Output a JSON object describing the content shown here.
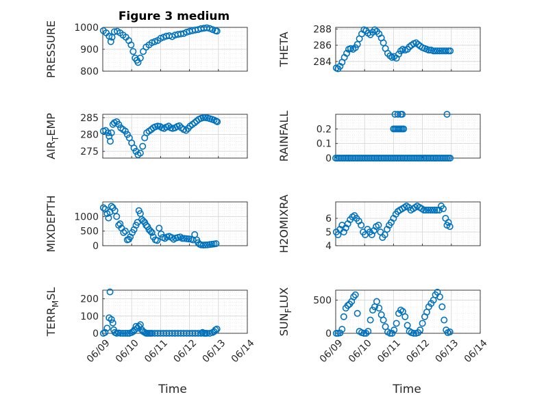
{
  "figure": {
    "title": "Figure 3 medium",
    "xlabel": "Time"
  },
  "colors": {
    "marker": "#0072BD",
    "axis": "#262626",
    "grid": "#d9d9d9"
  },
  "chart_data": [
    {
      "type": "scatter",
      "ylabel": "PRESSURE",
      "ylim": [
        800,
        1000
      ],
      "yticks": [
        800,
        900,
        1000
      ],
      "ytick_labels": [
        "800",
        "900",
        "1000"
      ],
      "xlim": [
        0,
        5
      ],
      "xticks": [
        0,
        1,
        2,
        3,
        4,
        5
      ],
      "xtick_labels": [
        "06/09",
        "06/10",
        "06/11",
        "06/12",
        "06/13",
        "06/14"
      ],
      "x": [
        0.02,
        0.12,
        0.22,
        0.28,
        0.32,
        0.4,
        0.5,
        0.6,
        0.7,
        0.8,
        0.9,
        0.98,
        1.05,
        1.12,
        1.18,
        1.22,
        1.3,
        1.4,
        1.5,
        1.6,
        1.7,
        1.8,
        1.9,
        2.0,
        2.1,
        2.2,
        2.3,
        2.4,
        2.5,
        2.6,
        2.7,
        2.8,
        2.9,
        3.0,
        3.1,
        3.2,
        3.3,
        3.4,
        3.5,
        3.6,
        3.7,
        3.8,
        3.9,
        3.95
      ],
      "y": [
        985,
        975,
        960,
        935,
        955,
        980,
        982,
        975,
        965,
        955,
        940,
        920,
        890,
        860,
        850,
        840,
        860,
        890,
        910,
        920,
        930,
        935,
        940,
        950,
        955,
        960,
        962,
        958,
        965,
        968,
        970,
        972,
        978,
        982,
        985,
        988,
        990,
        994,
        996,
        998,
        995,
        990,
        985,
        983
      ]
    },
    {
      "type": "scatter",
      "ylabel": "THETA",
      "ylim": [
        282.8,
        288.2
      ],
      "yticks": [
        284,
        286,
        288
      ],
      "ytick_labels": [
        "284",
        "286",
        "288"
      ],
      "xlim": [
        0,
        5
      ],
      "xticks": [
        0,
        1,
        2,
        3,
        4,
        5
      ],
      "xtick_labels": [
        "06/09",
        "06/10",
        "06/11",
        "06/12",
        "06/13",
        "06/14"
      ],
      "x": [
        0.02,
        0.08,
        0.15,
        0.22,
        0.3,
        0.38,
        0.45,
        0.52,
        0.6,
        0.68,
        0.75,
        0.82,
        0.9,
        0.98,
        1.05,
        1.12,
        1.2,
        1.28,
        1.35,
        1.42,
        1.5,
        1.58,
        1.65,
        1.72,
        1.8,
        1.88,
        1.95,
        2.02,
        2.1,
        2.18,
        2.25,
        2.32,
        2.4,
        2.48,
        2.55,
        2.62,
        2.7,
        2.78,
        2.85,
        2.92,
        3.0,
        3.08,
        3.15,
        3.22,
        3.3,
        3.38,
        3.45,
        3.52,
        3.6,
        3.68,
        3.75,
        3.82,
        3.9,
        3.96
      ],
      "y": [
        283.2,
        283.1,
        283.4,
        283.9,
        284.5,
        285.0,
        285.5,
        285.6,
        285.5,
        285.7,
        286.1,
        286.8,
        287.4,
        287.9,
        287.8,
        287.5,
        287.3,
        287.6,
        287.9,
        287.7,
        287.4,
        286.9,
        286.3,
        285.6,
        285.0,
        284.7,
        284.5,
        284.6,
        284.4,
        284.9,
        285.3,
        285.5,
        285.4,
        285.5,
        285.8,
        286.0,
        286.2,
        286.3,
        286.1,
        285.9,
        285.7,
        285.6,
        285.5,
        285.4,
        285.4,
        285.3,
        285.3,
        285.3,
        285.3,
        285.3,
        285.3,
        285.3,
        285.3,
        285.3
      ]
    },
    {
      "type": "scatter",
      "ylabel": "AIR_TEMP",
      "ylim": [
        273,
        286
      ],
      "yticks": [
        275,
        280,
        285
      ],
      "ytick_labels": [
        "275",
        "280",
        "285"
      ],
      "xlim": [
        0,
        5
      ],
      "xticks": [
        0,
        1,
        2,
        3,
        4,
        5
      ],
      "xtick_labels": [
        "06/09",
        "06/10",
        "06/11",
        "06/12",
        "06/13",
        "06/14"
      ],
      "x": [
        0.02,
        0.1,
        0.18,
        0.22,
        0.26,
        0.3,
        0.35,
        0.4,
        0.48,
        0.55,
        0.62,
        0.7,
        0.78,
        0.85,
        0.92,
        1.0,
        1.08,
        1.15,
        1.22,
        1.3,
        1.38,
        1.45,
        1.52,
        1.6,
        1.68,
        1.75,
        1.82,
        1.9,
        1.98,
        2.05,
        2.12,
        2.2,
        2.28,
        2.35,
        2.42,
        2.5,
        2.58,
        2.65,
        2.72,
        2.8,
        2.88,
        2.95,
        3.02,
        3.1,
        3.18,
        3.25,
        3.32,
        3.4,
        3.48,
        3.55,
        3.62,
        3.7,
        3.78,
        3.85,
        3.92,
        3.96
      ],
      "y": [
        281.0,
        281.2,
        280.5,
        279.5,
        278.0,
        280.5,
        283.0,
        283.5,
        283.8,
        283.0,
        282.0,
        281.5,
        281.0,
        280.0,
        279.0,
        277.5,
        276.0,
        275.0,
        274.0,
        274.5,
        276.5,
        279.0,
        280.5,
        281.0,
        281.5,
        282.0,
        282.3,
        282.5,
        282.4,
        282.0,
        281.8,
        282.2,
        282.5,
        282.0,
        281.8,
        282.0,
        282.4,
        282.6,
        282.0,
        281.5,
        281.2,
        281.8,
        282.5,
        283.0,
        283.5,
        284.0,
        284.5,
        284.8,
        285.0,
        285.0,
        284.9,
        284.7,
        284.5,
        284.3,
        284.0,
        283.8
      ]
    },
    {
      "type": "scatter",
      "ylabel": "RAINFALL",
      "ylim": [
        0,
        0.3
      ],
      "yticks": [
        0,
        0.1,
        0.2
      ],
      "ytick_labels": [
        "0",
        "0.1",
        "0.2"
      ],
      "xlim": [
        0,
        5
      ],
      "xticks": [
        0,
        1,
        2,
        3,
        4,
        5
      ],
      "xtick_labels": [
        "06/09",
        "06/10",
        "06/11",
        "06/12",
        "06/13",
        "06/14"
      ],
      "x": [
        0.0,
        0.06,
        0.12,
        0.18,
        0.24,
        0.3,
        0.36,
        0.42,
        0.48,
        0.54,
        0.6,
        0.66,
        0.72,
        0.78,
        0.84,
        0.9,
        0.96,
        1.02,
        1.08,
        1.14,
        1.2,
        1.26,
        1.32,
        1.38,
        1.44,
        1.5,
        1.56,
        1.62,
        1.68,
        1.74,
        1.8,
        1.86,
        1.92,
        1.98,
        2.04,
        2.1,
        2.16,
        2.22,
        2.28,
        2.34,
        2.4,
        2.46,
        2.52,
        2.58,
        2.64,
        2.7,
        2.76,
        2.82,
        2.88,
        2.94,
        3.0,
        3.06,
        3.12,
        3.18,
        3.24,
        3.3,
        3.36,
        3.42,
        3.48,
        3.54,
        3.6,
        3.66,
        3.72,
        3.78,
        3.84,
        3.9,
        3.96,
        2.0,
        2.05,
        2.1,
        2.15,
        2.2,
        2.25,
        2.3,
        2.35,
        2.05,
        2.15,
        2.25,
        2.3,
        3.85
      ],
      "y": [
        0,
        0,
        0,
        0,
        0,
        0,
        0,
        0,
        0,
        0,
        0,
        0,
        0,
        0,
        0,
        0,
        0,
        0,
        0,
        0,
        0,
        0,
        0,
        0,
        0,
        0,
        0,
        0,
        0,
        0,
        0,
        0,
        0,
        0,
        0,
        0,
        0,
        0,
        0,
        0,
        0,
        0,
        0,
        0,
        0,
        0,
        0,
        0,
        0,
        0,
        0,
        0,
        0,
        0,
        0,
        0,
        0,
        0,
        0,
        0,
        0,
        0,
        0,
        0,
        0,
        0,
        0,
        0.2,
        0.2,
        0.2,
        0.2,
        0.2,
        0.2,
        0.2,
        0.2,
        0.3,
        0.3,
        0.3,
        0.3,
        0.3
      ]
    },
    {
      "type": "scatter",
      "ylabel": "MIXDEPTH",
      "ylim": [
        0,
        1500
      ],
      "yticks": [
        0,
        500,
        1000
      ],
      "ytick_labels": [
        "0",
        "500",
        "1000"
      ],
      "xlim": [
        0,
        5
      ],
      "xticks": [
        0,
        1,
        2,
        3,
        4,
        5
      ],
      "xtick_labels": [
        "06/09",
        "06/10",
        "06/11",
        "06/12",
        "06/13",
        "06/14"
      ],
      "x": [
        0.02,
        0.08,
        0.15,
        0.2,
        0.25,
        0.3,
        0.35,
        0.42,
        0.48,
        0.55,
        0.6,
        0.65,
        0.72,
        0.78,
        0.85,
        0.9,
        0.95,
        1.02,
        1.08,
        1.15,
        1.2,
        1.25,
        1.3,
        1.35,
        1.4,
        1.45,
        1.5,
        1.55,
        1.6,
        1.65,
        1.7,
        1.75,
        1.82,
        1.88,
        1.95,
        2.02,
        2.08,
        2.15,
        2.22,
        2.3,
        2.38,
        2.45,
        2.52,
        2.6,
        2.68,
        2.75,
        2.82,
        2.9,
        2.98,
        3.05,
        3.12,
        3.18,
        3.25,
        3.3,
        3.35,
        3.4,
        3.48,
        3.55,
        3.62,
        3.7,
        3.78,
        3.85,
        3.92
      ],
      "y": [
        1300,
        1250,
        1100,
        950,
        1150,
        1350,
        1300,
        1200,
        1000,
        700,
        750,
        600,
        450,
        500,
        200,
        220,
        300,
        450,
        550,
        700,
        800,
        1200,
        1100,
        900,
        850,
        800,
        700,
        650,
        550,
        500,
        450,
        300,
        200,
        180,
        600,
        400,
        280,
        250,
        300,
        320,
        280,
        220,
        260,
        280,
        300,
        250,
        250,
        240,
        230,
        220,
        200,
        380,
        200,
        100,
        50,
        30,
        20,
        25,
        30,
        40,
        50,
        60,
        70
      ]
    },
    {
      "type": "scatter",
      "ylabel": "H2OMIXRA",
      "ylim": [
        4,
        7.2
      ],
      "yticks": [
        4,
        5,
        6
      ],
      "ytick_labels": [
        "4",
        "5",
        "6"
      ],
      "xlim": [
        0,
        5
      ],
      "xticks": [
        0,
        1,
        2,
        3,
        4,
        5
      ],
      "xtick_labels": [
        "06/09",
        "06/10",
        "06/11",
        "06/12",
        "06/13",
        "06/14"
      ],
      "x": [
        0.02,
        0.08,
        0.15,
        0.22,
        0.28,
        0.35,
        0.42,
        0.5,
        0.58,
        0.65,
        0.72,
        0.8,
        0.88,
        0.95,
        1.02,
        1.1,
        1.18,
        1.25,
        1.32,
        1.4,
        1.48,
        1.55,
        1.62,
        1.7,
        1.78,
        1.85,
        1.92,
        2.0,
        2.08,
        2.15,
        2.22,
        2.3,
        2.38,
        2.45,
        2.52,
        2.6,
        2.68,
        2.75,
        2.82,
        2.9,
        2.98,
        3.05,
        3.12,
        3.2,
        3.28,
        3.35,
        3.42,
        3.5,
        3.58,
        3.65,
        3.72,
        3.8,
        3.85,
        3.9,
        3.95
      ],
      "y": [
        5.0,
        4.8,
        5.2,
        5.5,
        5.0,
        5.3,
        5.6,
        5.9,
        6.1,
        6.2,
        6.0,
        5.8,
        5.5,
        5.0,
        4.8,
        5.2,
        5.0,
        4.8,
        5.1,
        5.4,
        5.5,
        5.0,
        4.6,
        4.8,
        5.2,
        5.5,
        5.7,
        6.0,
        6.3,
        6.5,
        6.6,
        6.7,
        6.8,
        6.9,
        6.8,
        6.6,
        6.7,
        6.8,
        6.9,
        6.8,
        6.7,
        6.6,
        6.6,
        6.6,
        6.6,
        6.6,
        6.6,
        6.6,
        6.6,
        6.9,
        6.7,
        6.0,
        5.5,
        5.7,
        5.4
      ]
    },
    {
      "type": "scatter",
      "ylabel": "TERR_MSL",
      "ylim": [
        0,
        250
      ],
      "yticks": [
        0,
        100,
        200
      ],
      "ytick_labels": [
        "0",
        "100",
        "200"
      ],
      "xlim": [
        0,
        5
      ],
      "xticks": [
        0,
        1,
        2,
        3,
        4,
        5
      ],
      "xtick_labels": [
        "06/09",
        "06/10",
        "06/11",
        "06/12",
        "06/13",
        "06/14"
      ],
      "x": [
        0.02,
        0.08,
        0.15,
        0.22,
        0.25,
        0.3,
        0.35,
        0.38,
        0.42,
        0.48,
        0.55,
        0.62,
        0.7,
        0.78,
        0.85,
        0.92,
        1.0,
        1.05,
        1.1,
        1.15,
        1.2,
        1.25,
        1.3,
        1.35,
        1.4,
        1.45,
        1.5,
        1.55,
        1.6,
        1.65,
        1.7,
        1.8,
        1.9,
        2.0,
        2.1,
        2.2,
        2.3,
        2.4,
        2.5,
        2.6,
        2.7,
        2.8,
        2.9,
        3.0,
        3.1,
        3.2,
        3.3,
        3.4,
        3.45,
        3.5,
        3.55,
        3.6,
        3.7,
        3.8,
        3.85,
        3.9,
        3.95
      ],
      "y": [
        0,
        5,
        30,
        90,
        240,
        80,
        60,
        20,
        5,
        0,
        2,
        0,
        0,
        0,
        0,
        0,
        5,
        10,
        20,
        40,
        30,
        40,
        50,
        20,
        10,
        5,
        0,
        0,
        0,
        0,
        0,
        0,
        0,
        0,
        0,
        0,
        0,
        0,
        0,
        0,
        0,
        0,
        0,
        0,
        0,
        0,
        0,
        0,
        5,
        0,
        0,
        0,
        0,
        5,
        10,
        20,
        25
      ]
    },
    {
      "type": "scatter",
      "ylabel": "SUN_FLUX",
      "ylim": [
        0,
        650
      ],
      "yticks": [
        0,
        500
      ],
      "ytick_labels": [
        "0",
        "500"
      ],
      "xlim": [
        0,
        5
      ],
      "xticks": [
        0,
        1,
        2,
        3,
        4,
        5
      ],
      "xtick_labels": [
        "06/09",
        "06/10",
        "06/11",
        "06/12",
        "06/13",
        "06/14"
      ],
      "x": [
        0.02,
        0.08,
        0.15,
        0.22,
        0.28,
        0.35,
        0.42,
        0.48,
        0.55,
        0.62,
        0.68,
        0.75,
        0.82,
        0.9,
        0.98,
        1.05,
        1.12,
        1.2,
        1.28,
        1.35,
        1.42,
        1.5,
        1.58,
        1.65,
        1.72,
        1.8,
        1.88,
        1.95,
        2.02,
        2.1,
        2.18,
        2.25,
        2.32,
        2.4,
        2.48,
        2.55,
        2.62,
        2.7,
        2.78,
        2.85,
        2.92,
        3.0,
        3.08,
        3.15,
        3.22,
        3.3,
        3.38,
        3.45,
        3.52,
        3.6,
        3.68,
        3.75,
        3.82,
        3.88,
        3.95
      ],
      "y": [
        0,
        0,
        5,
        60,
        250,
        380,
        420,
        440,
        480,
        550,
        580,
        300,
        30,
        10,
        0,
        0,
        30,
        200,
        350,
        400,
        480,
        380,
        280,
        200,
        100,
        20,
        0,
        0,
        50,
        150,
        300,
        350,
        330,
        250,
        120,
        30,
        10,
        0,
        0,
        10,
        50,
        150,
        250,
        320,
        400,
        450,
        500,
        580,
        620,
        550,
        400,
        200,
        50,
        10,
        20
      ]
    }
  ]
}
